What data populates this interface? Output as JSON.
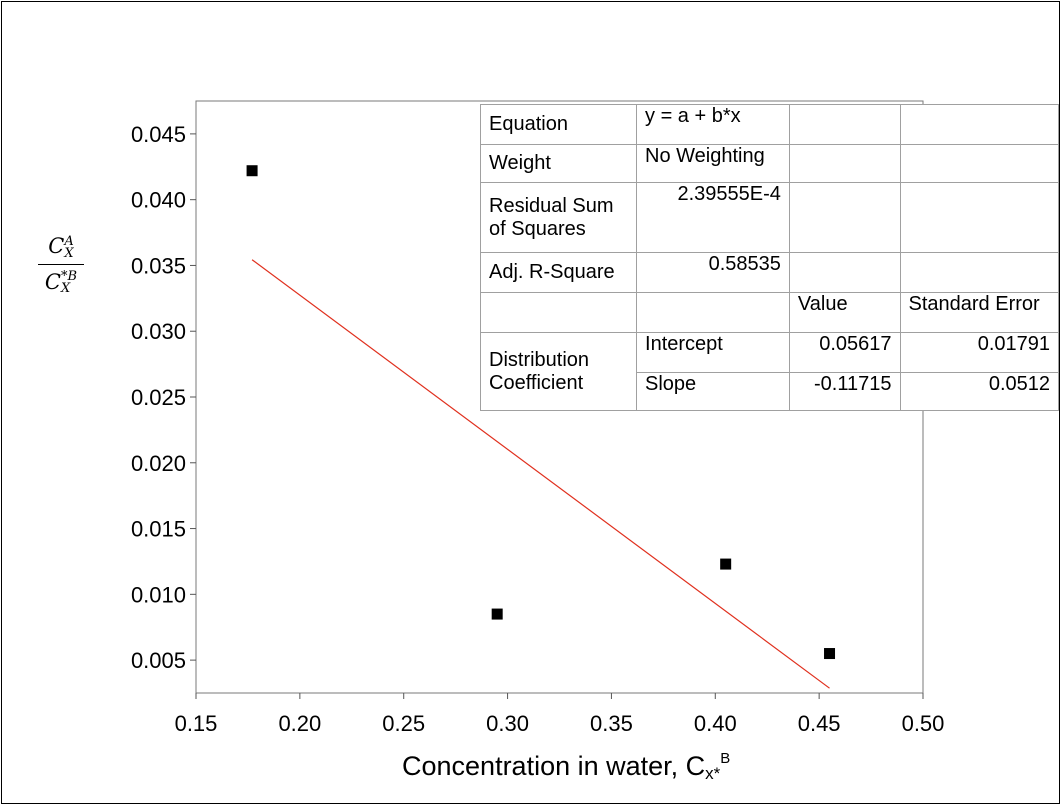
{
  "chart_data": {
    "type": "scatter",
    "xlabel_text": "Concentration in water, C",
    "xlabel_sub": "x*",
    "xlabel_sup": "B",
    "ylabel": {
      "numerator": "C",
      "numerator_sub": "X",
      "numerator_sup": "A",
      "denominator": "C",
      "denominator_sub": "X",
      "denominator_sup": "*B"
    },
    "xlim": [
      0.15,
      0.5
    ],
    "ylim": [
      0.0025,
      0.0475
    ],
    "x_ticks": [
      "0.15",
      "0.20",
      "0.25",
      "0.30",
      "0.35",
      "0.40",
      "0.45",
      "0.50"
    ],
    "y_ticks": [
      "0.005",
      "0.010",
      "0.015",
      "0.020",
      "0.025",
      "0.030",
      "0.035",
      "0.040",
      "0.045"
    ],
    "points": [
      {
        "x": 0.177,
        "y": 0.0422
      },
      {
        "x": 0.295,
        "y": 0.0085
      },
      {
        "x": 0.405,
        "y": 0.0123
      },
      {
        "x": 0.455,
        "y": 0.0055
      }
    ],
    "fit_line": {
      "x_start": 0.177,
      "x_end": 0.455,
      "intercept": 0.05617,
      "slope": -0.11715,
      "color": "#e0301e"
    },
    "marker_color": "#000000",
    "grid": false
  },
  "stats_table": {
    "equation_label": "Equation",
    "equation_value": "y = a + b*x",
    "weight_label": "Weight",
    "weight_value": "No Weighting",
    "rss_label": "Residual Sum of Squares",
    "rss_value": "2.39555E-4",
    "adjr_label": "Adj. R-Square",
    "adjr_value": "0.58535",
    "value_header": "Value",
    "stderr_header": "Standard Error",
    "group_label": "Distribution Coefficient",
    "intercept_label": "Intercept",
    "intercept_value": "0.05617",
    "intercept_se": "0.01791",
    "slope_label": "Slope",
    "slope_value": "-0.11715",
    "slope_se": "0.0512"
  }
}
